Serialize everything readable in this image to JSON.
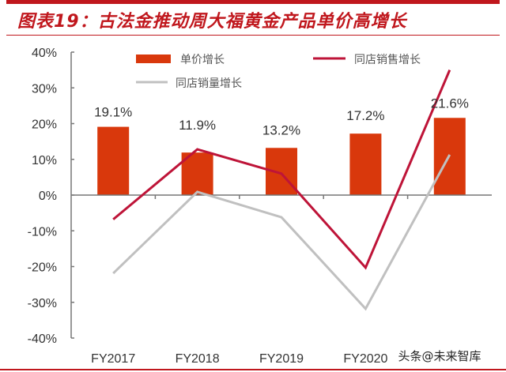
{
  "title": "图表19：古法金推动周大福黄金产品单价高增长",
  "watermark": "头条@未来智库",
  "colors": {
    "bar": "#d9380c",
    "sales": "#be1438",
    "volume": "#c0c0c0",
    "accent": "#c0171d"
  },
  "chart_data": {
    "type": "bar+line",
    "categories": [
      "FY2017",
      "FY2018",
      "FY2019",
      "FY2020",
      ""
    ],
    "ylim": [
      -40,
      40
    ],
    "yticks": [
      -40,
      -30,
      -20,
      -10,
      0,
      10,
      20,
      30,
      40
    ],
    "ytick_labels": [
      "-40%",
      "-30%",
      "-20%",
      "-10%",
      "0%",
      "10%",
      "20%",
      "30%",
      "40%"
    ],
    "grid": false,
    "legend_position": "top",
    "series": [
      {
        "name": "单价增长",
        "type": "bar",
        "values": [
          19.1,
          11.9,
          13.2,
          17.2,
          21.6
        ],
        "labels": [
          "19.1%",
          "11.9%",
          "13.2%",
          "17.2%",
          "21.6%"
        ]
      },
      {
        "name": "同店销售增长",
        "type": "line",
        "values": [
          -6.8,
          12.8,
          6.0,
          -20.3,
          35.0
        ]
      },
      {
        "name": "同店销量增长",
        "type": "line",
        "values": [
          -21.9,
          0.9,
          -6.2,
          -31.8,
          11.3
        ]
      }
    ]
  }
}
